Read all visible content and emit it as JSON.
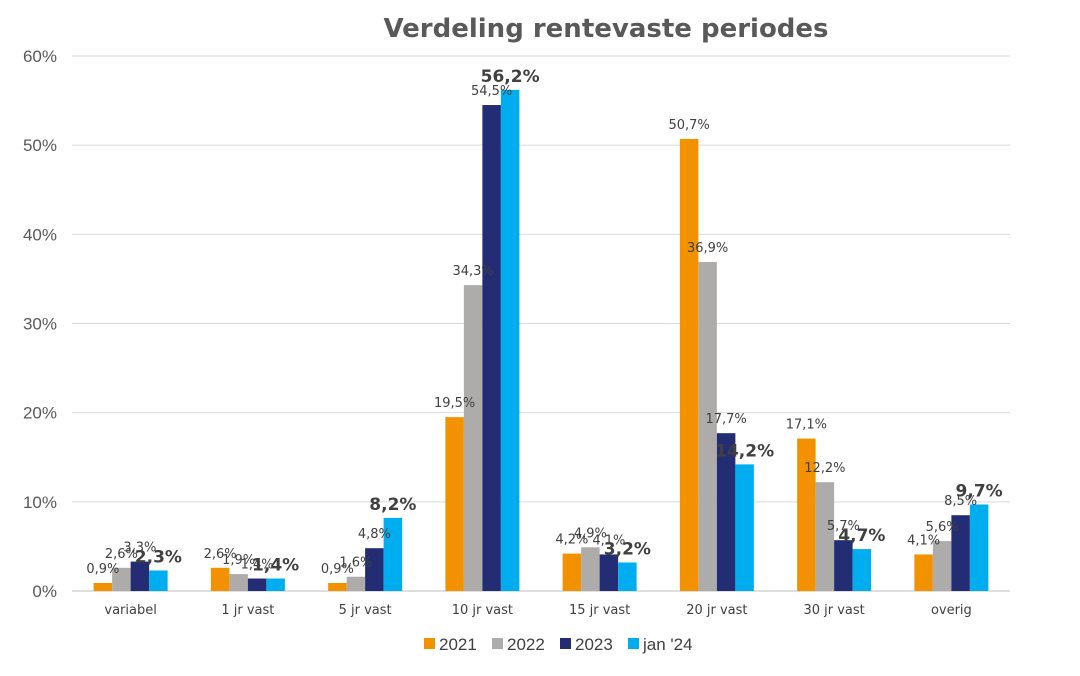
{
  "chart_data": {
    "type": "bar",
    "title": "Verdeling rentevaste periodes",
    "categories": [
      "variabel",
      "1 jr vast",
      "5 jr vast",
      "10 jr vast",
      "15 jr vast",
      "20 jr vast",
      "30 jr vast",
      "overig"
    ],
    "series": [
      {
        "name": "2021",
        "color": "#f39200",
        "values": [
          0.9,
          2.6,
          0.9,
          19.5,
          4.2,
          50.7,
          17.1,
          4.1
        ],
        "labels": [
          "0,9%",
          "2,6%",
          "0,9%",
          "19,5%",
          "4,2%",
          "50,7%",
          "17,1%",
          "4,1%"
        ]
      },
      {
        "name": "2022",
        "color": "#aeabab",
        "values": [
          2.6,
          1.9,
          1.6,
          34.3,
          4.9,
          36.9,
          12.2,
          5.6
        ],
        "labels": [
          "2,6%",
          "1,9%",
          "1,6%",
          "34,3%",
          "4,9%",
          "36,9%",
          "12,2%",
          "5,6%"
        ]
      },
      {
        "name": "2023",
        "color": "#232d74",
        "values": [
          3.3,
          1.4,
          4.8,
          54.5,
          4.1,
          17.7,
          5.7,
          8.5
        ],
        "labels": [
          "3,3%",
          "1,4%",
          "4,8%",
          "54,5%",
          "4,1%",
          "17,7%",
          "5,7%",
          "8,5%"
        ]
      },
      {
        "name": "jan '24",
        "color": "#00aeef",
        "values": [
          2.3,
          1.4,
          8.2,
          56.2,
          3.2,
          14.2,
          4.7,
          9.7
        ],
        "labels": [
          "2,3%",
          "1,4%",
          "8,2%",
          "56,2%",
          "3,2%",
          "14,2%",
          "4,7%",
          "9,7%"
        ]
      }
    ],
    "ylim": [
      0,
      60
    ],
    "yticks": [
      "0%",
      "10%",
      "20%",
      "30%",
      "40%",
      "50%",
      "60%"
    ],
    "grid": true,
    "legend_position": "bottom"
  }
}
